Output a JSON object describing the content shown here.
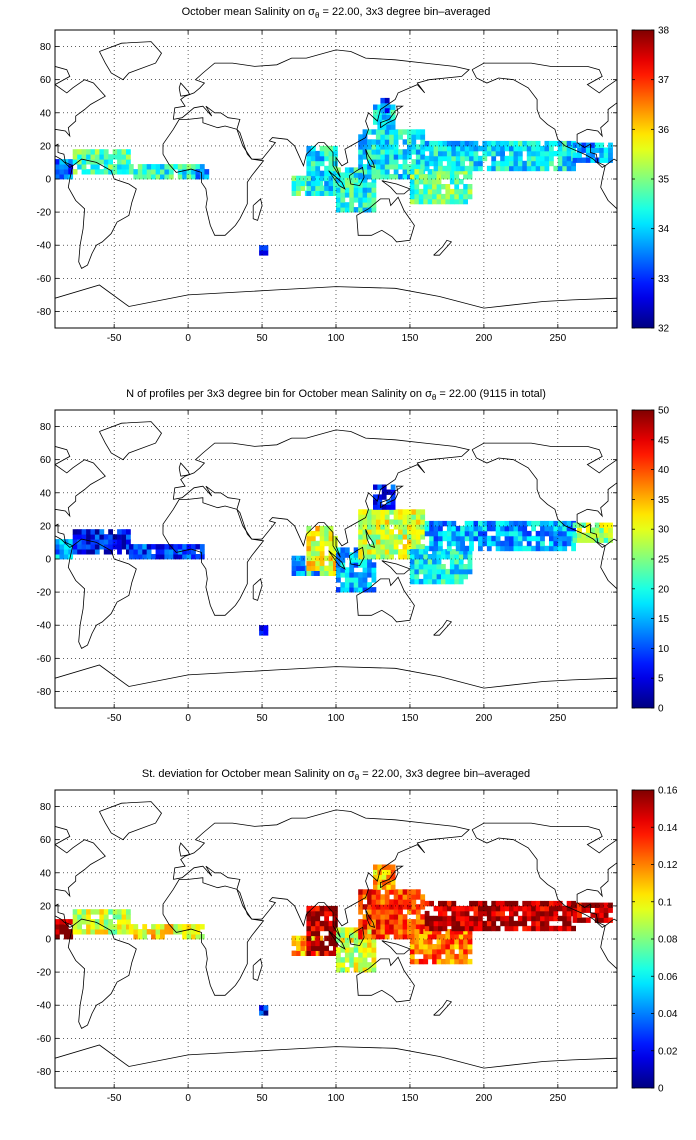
{
  "chart_data": [
    {
      "type": "heatmap",
      "title_prefix": "October mean Salinity on σ",
      "title_sub": "θ",
      "title_suffix": " = 22.00, 3x3 degree bin–averaged",
      "xlim": [
        -90,
        290
      ],
      "ylim": [
        -90,
        90
      ],
      "xticks": [
        -50,
        0,
        50,
        100,
        150,
        200,
        250
      ],
      "yticks": [
        -80,
        -60,
        -40,
        -20,
        0,
        20,
        40,
        60,
        80
      ],
      "grid": true,
      "colorbar": {
        "min": 32,
        "max": 38,
        "ticks": [
          32,
          33,
          34,
          35,
          36,
          37,
          38
        ]
      },
      "regions": [
        {
          "x": [
            -90,
            -78
          ],
          "y": [
            0,
            12
          ],
          "value": 33.4
        },
        {
          "x": [
            -78,
            -40
          ],
          "y": [
            3,
            17
          ],
          "value": 34.6
        },
        {
          "x": [
            -40,
            10
          ],
          "y": [
            0,
            8
          ],
          "value": 34.3
        },
        {
          "x": [
            5,
            12
          ],
          "y": [
            0,
            5
          ],
          "value": 33.8
        },
        {
          "x": [
            70,
            90
          ],
          "y": [
            -10,
            0
          ],
          "value": 34.6
        },
        {
          "x": [
            80,
            100
          ],
          "y": [
            -10,
            20
          ],
          "value": 34.1
        },
        {
          "x": [
            100,
            125
          ],
          "y": [
            -20,
            5
          ],
          "value": 34.3
        },
        {
          "x": [
            115,
            160
          ],
          "y": [
            0,
            30
          ],
          "value": 34.1
        },
        {
          "x": [
            125,
            140
          ],
          "y": [
            30,
            45
          ],
          "value": 34.0
        },
        {
          "x": [
            130,
            136
          ],
          "y": [
            40,
            47
          ],
          "value": 33.0
        },
        {
          "x": [
            150,
            190
          ],
          "y": [
            -15,
            5
          ],
          "value": 34.7
        },
        {
          "x": [
            160,
            260
          ],
          "y": [
            5,
            22
          ],
          "value": 34.1
        },
        {
          "x": [
            260,
            285
          ],
          "y": [
            10,
            20
          ],
          "value": 33.7
        },
        {
          "x": [
            48,
            52
          ],
          "y": [
            -46,
            -42
          ],
          "value": 33.2
        }
      ]
    },
    {
      "type": "heatmap",
      "title_prefix": "N of profiles per 3x3 degree bin for October mean Salinity on σ",
      "title_sub": "θ",
      "title_suffix": " = 22.00 (9115 in total)",
      "xlim": [
        -90,
        290
      ],
      "ylim": [
        -90,
        90
      ],
      "xticks": [
        -50,
        0,
        50,
        100,
        150,
        200,
        250
      ],
      "yticks": [
        -80,
        -60,
        -40,
        -20,
        0,
        20,
        40,
        60,
        80
      ],
      "grid": true,
      "colorbar": {
        "min": 0,
        "max": 50,
        "ticks": [
          0,
          5,
          10,
          15,
          20,
          25,
          30,
          35,
          40,
          45,
          50
        ]
      },
      "regions": [
        {
          "x": [
            -90,
            -78
          ],
          "y": [
            0,
            12
          ],
          "value": 14
        },
        {
          "x": [
            -78,
            -40
          ],
          "y": [
            3,
            17
          ],
          "value": 6
        },
        {
          "x": [
            -40,
            10
          ],
          "y": [
            0,
            8
          ],
          "value": 8
        },
        {
          "x": [
            70,
            90
          ],
          "y": [
            -10,
            0
          ],
          "value": 12
        },
        {
          "x": [
            80,
            100
          ],
          "y": [
            -10,
            20
          ],
          "value": 30
        },
        {
          "x": [
            100,
            125
          ],
          "y": [
            -20,
            5
          ],
          "value": 14
        },
        {
          "x": [
            115,
            160
          ],
          "y": [
            0,
            30
          ],
          "value": 28
        },
        {
          "x": [
            125,
            140
          ],
          "y": [
            30,
            45
          ],
          "value": 8
        },
        {
          "x": [
            150,
            190
          ],
          "y": [
            -15,
            5
          ],
          "value": 18
        },
        {
          "x": [
            160,
            260
          ],
          "y": [
            5,
            22
          ],
          "value": 14
        },
        {
          "x": [
            260,
            285
          ],
          "y": [
            10,
            20
          ],
          "value": 26
        },
        {
          "x": [
            48,
            52
          ],
          "y": [
            -46,
            -42
          ],
          "value": 3
        }
      ]
    },
    {
      "type": "heatmap",
      "title_prefix": "St. deviation for October mean Salinity on σ",
      "title_sub": "θ",
      "title_suffix": " = 22.00, 3x3 degree bin–averaged",
      "xlim": [
        -90,
        290
      ],
      "ylim": [
        -90,
        90
      ],
      "xticks": [
        -50,
        0,
        50,
        100,
        150,
        200,
        250
      ],
      "yticks": [
        -80,
        -60,
        -40,
        -20,
        0,
        20,
        40,
        60,
        80
      ],
      "grid": true,
      "colorbar": {
        "min": 0,
        "max": 0.16,
        "ticks": [
          0,
          0.02,
          0.04,
          0.06,
          0.08,
          0.1,
          0.12,
          0.14,
          0.16
        ]
      },
      "regions": [
        {
          "x": [
            -90,
            -78
          ],
          "y": [
            0,
            12
          ],
          "value": 0.15
        },
        {
          "x": [
            -78,
            -40
          ],
          "y": [
            3,
            17
          ],
          "value": 0.09
        },
        {
          "x": [
            -40,
            10
          ],
          "y": [
            0,
            8
          ],
          "value": 0.1
        },
        {
          "x": [
            70,
            90
          ],
          "y": [
            -10,
            0
          ],
          "value": 0.11
        },
        {
          "x": [
            80,
            100
          ],
          "y": [
            -10,
            20
          ],
          "value": 0.15
        },
        {
          "x": [
            100,
            125
          ],
          "y": [
            -20,
            5
          ],
          "value": 0.09
        },
        {
          "x": [
            115,
            160
          ],
          "y": [
            0,
            30
          ],
          "value": 0.13
        },
        {
          "x": [
            125,
            140
          ],
          "y": [
            30,
            45
          ],
          "value": 0.11
        },
        {
          "x": [
            150,
            190
          ],
          "y": [
            -15,
            5
          ],
          "value": 0.12
        },
        {
          "x": [
            160,
            260
          ],
          "y": [
            5,
            22
          ],
          "value": 0.15
        },
        {
          "x": [
            260,
            285
          ],
          "y": [
            10,
            20
          ],
          "value": 0.15
        },
        {
          "x": [
            48,
            52
          ],
          "y": [
            -46,
            -42
          ],
          "value": 0.02
        }
      ]
    }
  ]
}
